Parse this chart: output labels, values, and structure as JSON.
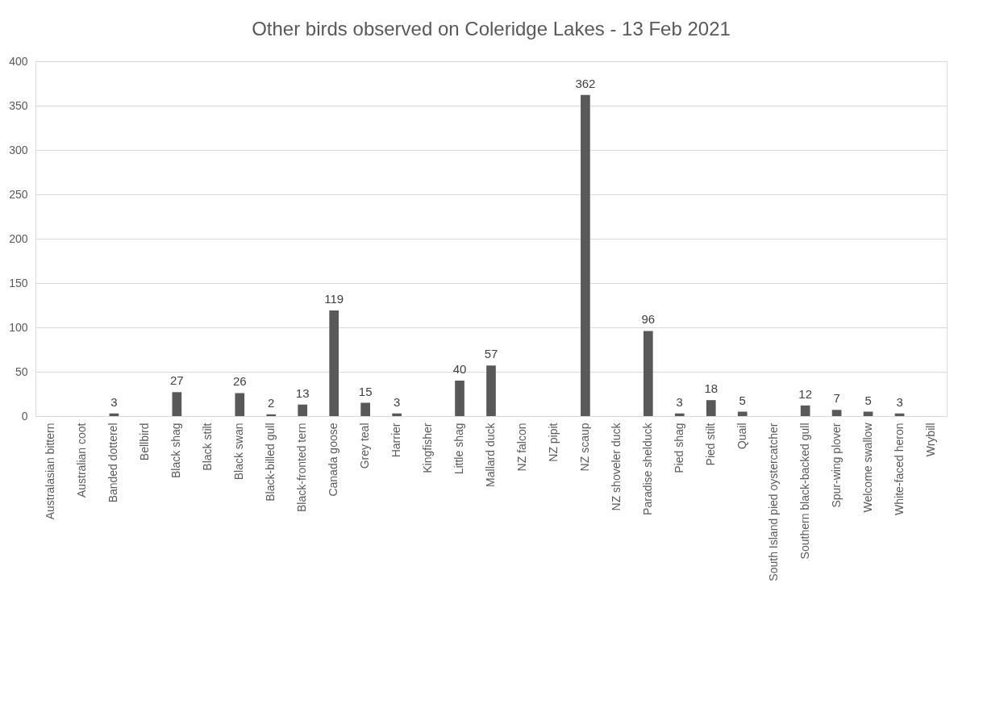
{
  "chart_data": {
    "type": "bar",
    "title": "Other birds observed on Coleridge Lakes - 13 Feb 2021",
    "categories": [
      "Australasian bittern",
      "Australian coot",
      "Banded dotterel",
      "Bellbird",
      "Black shag",
      "Black stilt",
      "Black swan",
      "Black-billed gull",
      "Black-fronted tern",
      "Canada goose",
      "Grey teal",
      "Harrier",
      "Kingfisher",
      "Little shag",
      "Mallard duck",
      "NZ falcon",
      "NZ pipit",
      "NZ scaup",
      "NZ shoveler duck",
      "Paradise shelduck",
      "Pied shag",
      "Pied stilt",
      "Quail",
      "South Island pied oystercatcher",
      "Southern black-backed gull",
      "Spur-wing plover",
      "Welcome swallow",
      "White-faced heron",
      "Wrybill"
    ],
    "values": [
      null,
      null,
      3,
      null,
      27,
      null,
      26,
      2,
      13,
      119,
      15,
      3,
      null,
      40,
      57,
      null,
      null,
      362,
      null,
      96,
      3,
      18,
      5,
      null,
      12,
      7,
      5,
      3,
      null
    ],
    "color": "#595959",
    "ylim": [
      0,
      400
    ],
    "yticks": [
      0,
      50,
      100,
      150,
      200,
      250,
      300,
      350,
      400
    ],
    "grid": "y",
    "data_labels": true
  }
}
